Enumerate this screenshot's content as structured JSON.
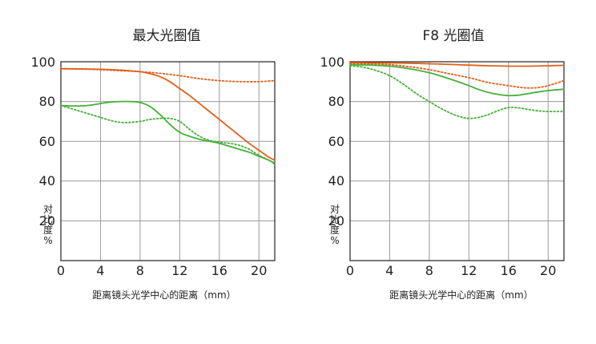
{
  "chart_data": [
    {
      "type": "line",
      "title": "最大光圈值",
      "xlabel": "距离镜头光学中心的距离（mm）",
      "ylabel": "对比度%",
      "xlim": [
        0,
        21.6
      ],
      "ylim": [
        0,
        100
      ],
      "x_ticks": [
        "0",
        "4",
        "8",
        "12",
        "16",
        "20"
      ],
      "y_ticks": [
        "20",
        "40",
        "60",
        "80",
        "100"
      ],
      "grid": true,
      "series": [
        {
          "color": "#E0601A",
          "style": "solid",
          "points": [
            [
              0,
              96.5
            ],
            [
              2,
              96.4
            ],
            [
              4,
              96.2
            ],
            [
              6,
              95.8
            ],
            [
              8,
              95
            ],
            [
              9,
              94
            ],
            [
              10,
              92.5
            ],
            [
              11,
              90
            ],
            [
              12,
              86.5
            ],
            [
              13,
              83
            ],
            [
              14,
              79
            ],
            [
              15,
              75
            ],
            [
              16,
              71
            ],
            [
              17,
              67
            ],
            [
              18,
              63
            ],
            [
              19,
              59
            ],
            [
              20,
              55.5
            ],
            [
              21,
              52
            ],
            [
              21.6,
              50.5
            ]
          ]
        },
        {
          "color": "#E0601A",
          "style": "dotted",
          "points": [
            [
              0,
              96.5
            ],
            [
              2,
              96.3
            ],
            [
              4,
              96
            ],
            [
              6,
              95.5
            ],
            [
              8,
              95
            ],
            [
              10,
              94.2
            ],
            [
              12,
              93
            ],
            [
              14,
              91.5
            ],
            [
              16,
              90.5
            ],
            [
              18,
              90
            ],
            [
              20,
              90
            ],
            [
              21.6,
              90.5
            ]
          ]
        },
        {
          "color": "#46B03A",
          "style": "solid",
          "points": [
            [
              0,
              78
            ],
            [
              1,
              77.8
            ],
            [
              2,
              77.8
            ],
            [
              3,
              78.2
            ],
            [
              4,
              79
            ],
            [
              5,
              79.7
            ],
            [
              6,
              80
            ],
            [
              7,
              80
            ],
            [
              8,
              79.5
            ],
            [
              9,
              77.5
            ],
            [
              10,
              73.5
            ],
            [
              11,
              68.5
            ],
            [
              12,
              64.5
            ],
            [
              13,
              62.5
            ],
            [
              14,
              61
            ],
            [
              15,
              60
            ],
            [
              16,
              59
            ],
            [
              17,
              57.5
            ],
            [
              18,
              56
            ],
            [
              19,
              54.5
            ],
            [
              20,
              52.5
            ],
            [
              21,
              50.5
            ],
            [
              21.6,
              49
            ]
          ]
        },
        {
          "color": "#46B03A",
          "style": "dotted",
          "points": [
            [
              0,
              78
            ],
            [
              1,
              76.5
            ],
            [
              2,
              75
            ],
            [
              3,
              73.5
            ],
            [
              4,
              72
            ],
            [
              5,
              70.5
            ],
            [
              6,
              69.5
            ],
            [
              7,
              69.5
            ],
            [
              8,
              70
            ],
            [
              9,
              71
            ],
            [
              10,
              71.5
            ],
            [
              11,
              71.5
            ],
            [
              12,
              70
            ],
            [
              13,
              66
            ],
            [
              14,
              62.5
            ],
            [
              15,
              60.5
            ],
            [
              16,
              59.5
            ],
            [
              17,
              59
            ],
            [
              18,
              58
            ],
            [
              19,
              56
            ],
            [
              20,
              53
            ],
            [
              21,
              50.5
            ],
            [
              21.6,
              48.5
            ]
          ]
        }
      ]
    },
    {
      "type": "line",
      "title": "F8 光圈值",
      "xlabel": "距离镜头光学中心的距离（mm）",
      "ylabel": "对比度%",
      "xlim": [
        0,
        21.6
      ],
      "ylim": [
        0,
        100
      ],
      "x_ticks": [
        "0",
        "4",
        "8",
        "12",
        "16",
        "20"
      ],
      "y_ticks": [
        "20",
        "40",
        "60",
        "80",
        "100"
      ],
      "grid": true,
      "series": [
        {
          "color": "#E0601A",
          "style": "solid",
          "points": [
            [
              0,
              99.5
            ],
            [
              4,
              99.4
            ],
            [
              8,
              99
            ],
            [
              12,
              98.3
            ],
            [
              14,
              98
            ],
            [
              16,
              97.8
            ],
            [
              18,
              97.8
            ],
            [
              20,
              98
            ],
            [
              21.6,
              98.2
            ]
          ]
        },
        {
          "color": "#E0601A",
          "style": "dotted",
          "points": [
            [
              0,
              99.2
            ],
            [
              2,
              99
            ],
            [
              4,
              98.5
            ],
            [
              6,
              97.5
            ],
            [
              8,
              96
            ],
            [
              10,
              94
            ],
            [
              12,
              92
            ],
            [
              14,
              89.5
            ],
            [
              16,
              88
            ],
            [
              17,
              87.2
            ],
            [
              18,
              86.8
            ],
            [
              19,
              87
            ],
            [
              20,
              88
            ],
            [
              21,
              89.5
            ],
            [
              21.6,
              90.5
            ]
          ]
        },
        {
          "color": "#46B03A",
          "style": "solid",
          "points": [
            [
              0,
              98.5
            ],
            [
              2,
              98.3
            ],
            [
              4,
              97.8
            ],
            [
              6,
              96.5
            ],
            [
              8,
              94.5
            ],
            [
              10,
              91.5
            ],
            [
              12,
              88
            ],
            [
              13,
              86
            ],
            [
              14,
              84.5
            ],
            [
              15,
              83.5
            ],
            [
              16,
              83
            ],
            [
              17,
              83.2
            ],
            [
              18,
              84
            ],
            [
              19,
              84.8
            ],
            [
              20,
              85.5
            ],
            [
              21.6,
              86.2
            ]
          ]
        },
        {
          "color": "#46B03A",
          "style": "dotted",
          "points": [
            [
              0,
              98
            ],
            [
              1,
              97.5
            ],
            [
              2,
              96.5
            ],
            [
              3,
              95
            ],
            [
              4,
              93
            ],
            [
              5,
              90
            ],
            [
              6,
              86.5
            ],
            [
              7,
              83
            ],
            [
              8,
              80
            ],
            [
              9,
              77
            ],
            [
              10,
              74.5
            ],
            [
              11,
              72.5
            ],
            [
              12,
              71.5
            ],
            [
              13,
              72
            ],
            [
              14,
              73.5
            ],
            [
              15,
              75.5
            ],
            [
              16,
              77
            ],
            [
              17,
              76.8
            ],
            [
              18,
              76
            ],
            [
              19,
              75.3
            ],
            [
              20,
              75
            ],
            [
              21,
              75
            ],
            [
              21.6,
              75
            ]
          ]
        }
      ]
    }
  ]
}
